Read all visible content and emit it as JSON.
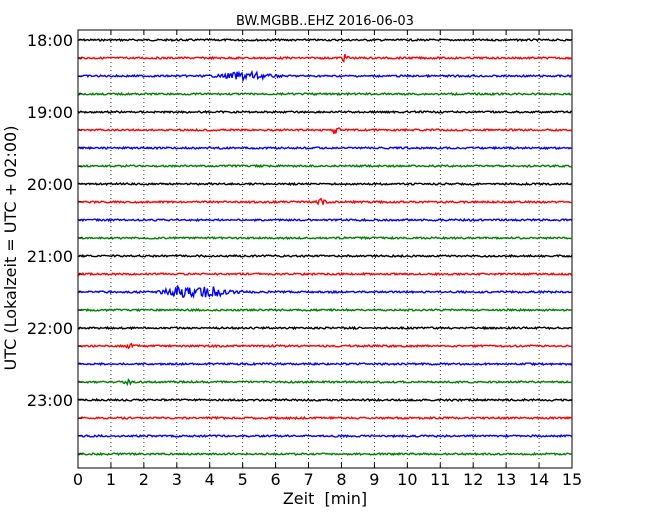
{
  "chart_data": {
    "type": "line",
    "title": "BW.MGBB..EHZ 2016-06-03",
    "xlabel": "Zeit  [min]",
    "ylabel": "UTC (Lokalzeit = UTC + 02:00)",
    "xlim": [
      0,
      15
    ],
    "x_ticks": [
      "0",
      "1",
      "2",
      "3",
      "4",
      "5",
      "6",
      "7",
      "8",
      "9",
      "10",
      "11",
      "12",
      "13",
      "14",
      "15"
    ],
    "y_ticks": [
      "18:00",
      "19:00",
      "20:00",
      "21:00",
      "22:00",
      "23:00"
    ],
    "grid": "vertical dotted",
    "trace_colors": [
      "#000000",
      "#ff0000",
      "#0000ff",
      "#008000"
    ],
    "traces": [
      {
        "start": "18:00",
        "bursts": []
      },
      {
        "start": "18:15",
        "bursts": [
          {
            "t": 8.1,
            "amp": 3
          }
        ]
      },
      {
        "start": "18:30",
        "bursts": [
          {
            "t": 5.1,
            "amp": 4,
            "width": 0.6
          }
        ]
      },
      {
        "start": "18:45",
        "bursts": []
      },
      {
        "start": "19:00",
        "bursts": []
      },
      {
        "start": "19:15",
        "bursts": [
          {
            "t": 7.8,
            "amp": 4
          }
        ]
      },
      {
        "start": "19:30",
        "bursts": []
      },
      {
        "start": "19:45",
        "bursts": []
      },
      {
        "start": "20:00",
        "bursts": []
      },
      {
        "start": "20:15",
        "bursts": [
          {
            "t": 7.4,
            "amp": 3
          }
        ]
      },
      {
        "start": "20:30",
        "bursts": []
      },
      {
        "start": "20:45",
        "bursts": []
      },
      {
        "start": "21:00",
        "bursts": []
      },
      {
        "start": "21:15",
        "bursts": []
      },
      {
        "start": "21:30",
        "bursts": [
          {
            "t": 3.0,
            "amp": 4,
            "width": 0.4
          },
          {
            "t": 4.0,
            "amp": 5,
            "width": 0.7
          }
        ]
      },
      {
        "start": "21:45",
        "bursts": []
      },
      {
        "start": "22:00",
        "bursts": []
      },
      {
        "start": "22:15",
        "bursts": [
          {
            "t": 1.6,
            "amp": 2
          }
        ]
      },
      {
        "start": "22:30",
        "bursts": []
      },
      {
        "start": "22:45",
        "bursts": [
          {
            "t": 1.5,
            "amp": 2
          }
        ]
      },
      {
        "start": "23:00",
        "bursts": []
      },
      {
        "start": "23:15",
        "bursts": []
      },
      {
        "start": "23:30",
        "bursts": []
      },
      {
        "start": "23:45",
        "bursts": []
      }
    ]
  }
}
